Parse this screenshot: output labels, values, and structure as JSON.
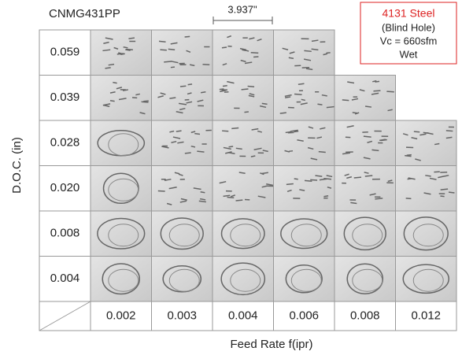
{
  "header": {
    "title": "CNMG431PP",
    "scale": "3.937\""
  },
  "info": {
    "material": "4131 Steel",
    "lines": [
      "(Blind Hole)",
      "Vc = 660sfm",
      "Wet"
    ]
  },
  "y_axis_label": "D.O.C. (in)",
  "x_axis_label": "Feed Rate f(ipr)",
  "rows": [
    "0.059",
    "0.039",
    "0.028",
    "0.020",
    "0.008",
    "0.004"
  ],
  "columns": [
    "0.002",
    "0.003",
    "0.004",
    "0.006",
    "0.008",
    "0.012"
  ]
}
